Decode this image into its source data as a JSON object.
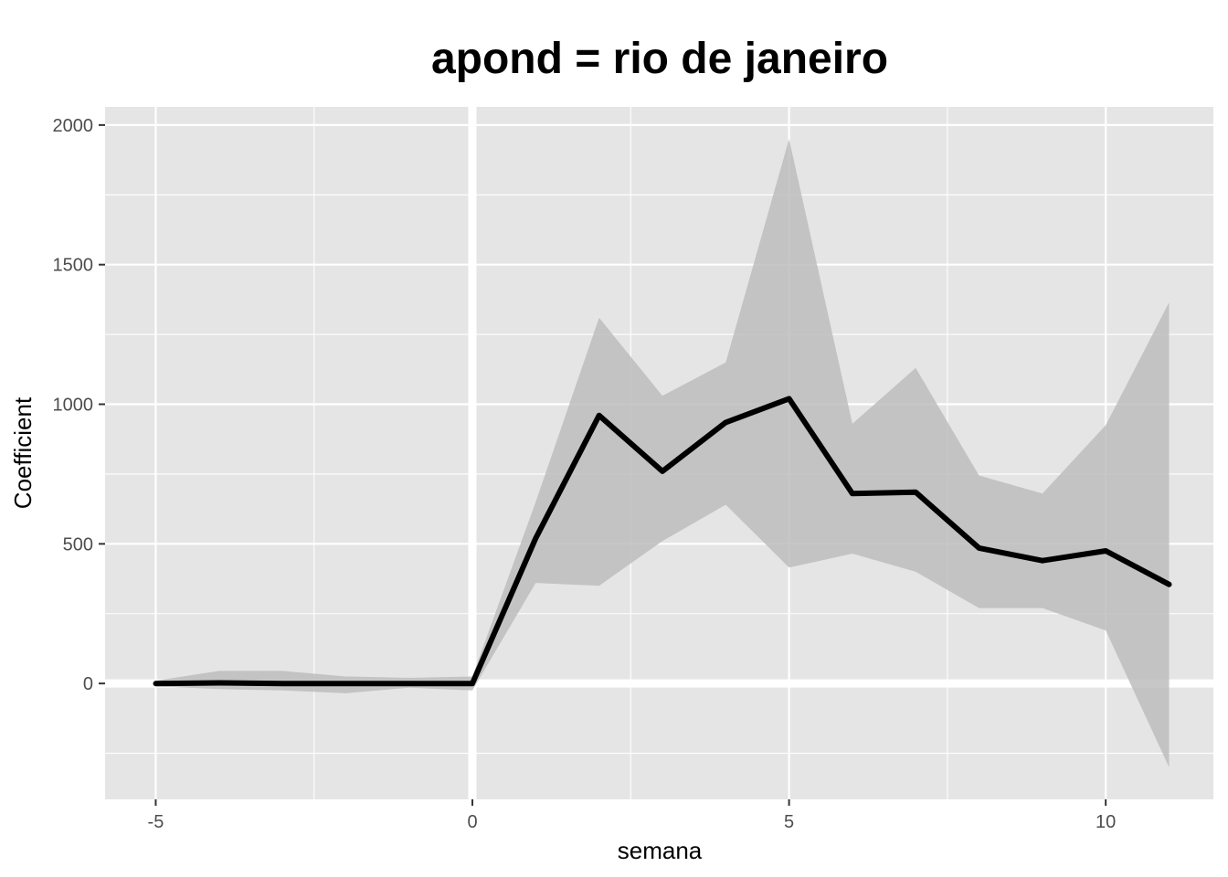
{
  "chart_data": {
    "type": "line",
    "title": "apond = rio de janeiro",
    "xlabel": "semana",
    "ylabel": "Coefficient",
    "xlim": [
      -5.8,
      11.7
    ],
    "ylim": [
      -415,
      2065
    ],
    "x_ticks": [
      -5,
      0,
      5,
      10
    ],
    "x_tick_labels": [
      "-5",
      "0",
      "5",
      "10"
    ],
    "y_ticks": [
      0,
      500,
      1000,
      1500,
      2000
    ],
    "y_tick_labels": [
      "0",
      "500",
      "1000",
      "1500",
      "2000"
    ],
    "reference_lines": {
      "x": 0,
      "y": 0
    },
    "grid": true,
    "legend": "none",
    "colors": {
      "panel": "#e5e5e5",
      "grid": "#ffffff",
      "line": "#000000",
      "ribbon": "#bdbdbd",
      "tick_text": "#4d4d4d"
    },
    "series": [
      {
        "x": [
          -5,
          -4,
          -3,
          -2,
          -1,
          0,
          1,
          2,
          3,
          4,
          5,
          6,
          7,
          8,
          9,
          10,
          11
        ],
        "values": [
          0,
          2,
          0,
          0,
          0,
          0,
          520,
          960,
          760,
          935,
          1020,
          680,
          685,
          485,
          440,
          475,
          355
        ],
        "lower": [
          -10,
          -20,
          -25,
          -35,
          -15,
          -25,
          360,
          350,
          510,
          640,
          415,
          465,
          400,
          270,
          270,
          190,
          -300
        ],
        "upper": [
          10,
          45,
          45,
          25,
          20,
          25,
          650,
          1310,
          1030,
          1150,
          1950,
          930,
          1130,
          745,
          680,
          925,
          1365
        ]
      }
    ]
  }
}
